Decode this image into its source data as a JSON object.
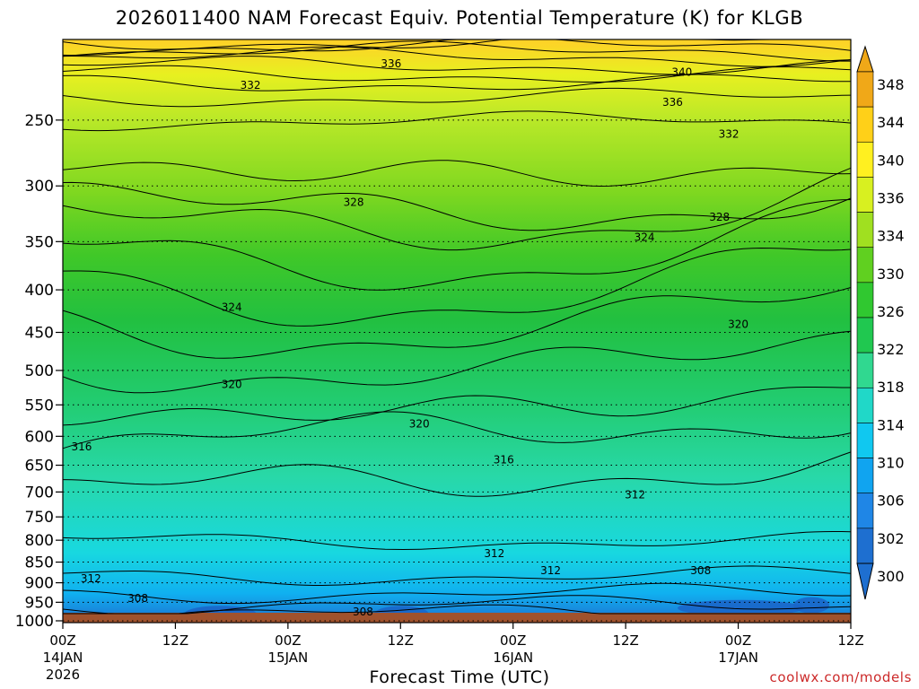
{
  "chart_data": {
    "type": "heatmap",
    "title": "2026011400 NAM Forecast Equiv. Potential Temperature (K) for KLGB",
    "xlabel": "Forecast Time (UTC)",
    "ylabel": "",
    "y_scale": "log-pressure",
    "y_ticks": [
      "250",
      "300",
      "350",
      "400",
      "450",
      "500",
      "550",
      "600",
      "650",
      "700",
      "750",
      "800",
      "850",
      "900",
      "950",
      "1000"
    ],
    "y_range": [
      1000,
      200
    ],
    "x_ticks": [
      {
        "hour": 0,
        "lines": [
          "00Z",
          "14JAN",
          "2026"
        ]
      },
      {
        "hour": 12,
        "lines": [
          "12Z"
        ]
      },
      {
        "hour": 24,
        "lines": [
          "00Z",
          "15JAN"
        ]
      },
      {
        "hour": 36,
        "lines": [
          "12Z"
        ]
      },
      {
        "hour": 48,
        "lines": [
          "00Z",
          "16JAN"
        ]
      },
      {
        "hour": 60,
        "lines": [
          "12Z"
        ]
      },
      {
        "hour": 72,
        "lines": [
          "00Z",
          "17JAN"
        ]
      },
      {
        "hour": 84,
        "lines": [
          "12Z"
        ]
      }
    ],
    "x_range_hours": [
      0,
      84
    ],
    "colorbar": {
      "ticks": [
        "300",
        "302",
        "306",
        "310",
        "314",
        "318",
        "322",
        "326",
        "330",
        "334",
        "336",
        "340",
        "344",
        "348"
      ],
      "colors": [
        "#1e6fd0",
        "#1f86e6",
        "#10a4f0",
        "#10c8f0",
        "#20d8c8",
        "#30d890",
        "#20c850",
        "#30c830",
        "#60d020",
        "#a0e020",
        "#d8f020",
        "#fff020",
        "#ffd018",
        "#f0a818"
      ]
    },
    "contour_labels": [
      {
        "value": "336",
        "hour": 35,
        "hpa": 214
      },
      {
        "value": "332",
        "hour": 20,
        "hpa": 227
      },
      {
        "value": "340",
        "hour": 66,
        "hpa": 219
      },
      {
        "value": "336",
        "hour": 65,
        "hpa": 238
      },
      {
        "value": "332",
        "hour": 71,
        "hpa": 260
      },
      {
        "value": "328",
        "hour": 31,
        "hpa": 314
      },
      {
        "value": "328",
        "hour": 70,
        "hpa": 327
      },
      {
        "value": "324",
        "hour": 62,
        "hpa": 346
      },
      {
        "value": "324",
        "hour": 18,
        "hpa": 420
      },
      {
        "value": "320",
        "hour": 72,
        "hpa": 440
      },
      {
        "value": "320",
        "hour": 18,
        "hpa": 520
      },
      {
        "value": "320",
        "hour": 38,
        "hpa": 580
      },
      {
        "value": "316",
        "hour": 2,
        "hpa": 618
      },
      {
        "value": "316",
        "hour": 47,
        "hpa": 640
      },
      {
        "value": "312",
        "hour": 61,
        "hpa": 705
      },
      {
        "value": "312",
        "hour": 46,
        "hpa": 830
      },
      {
        "value": "312",
        "hour": 52,
        "hpa": 870
      },
      {
        "value": "312",
        "hour": 3,
        "hpa": 890
      },
      {
        "value": "308",
        "hour": 68,
        "hpa": 870
      },
      {
        "value": "308",
        "hour": 8,
        "hpa": 940
      },
      {
        "value": "308",
        "hour": 32,
        "hpa": 975
      }
    ]
  },
  "title": "2026011400 NAM Forecast Equiv. Potential Temperature (K) for KLGB",
  "xlabel": "Forecast Time (UTC)",
  "credit": "coolwx.com/models"
}
